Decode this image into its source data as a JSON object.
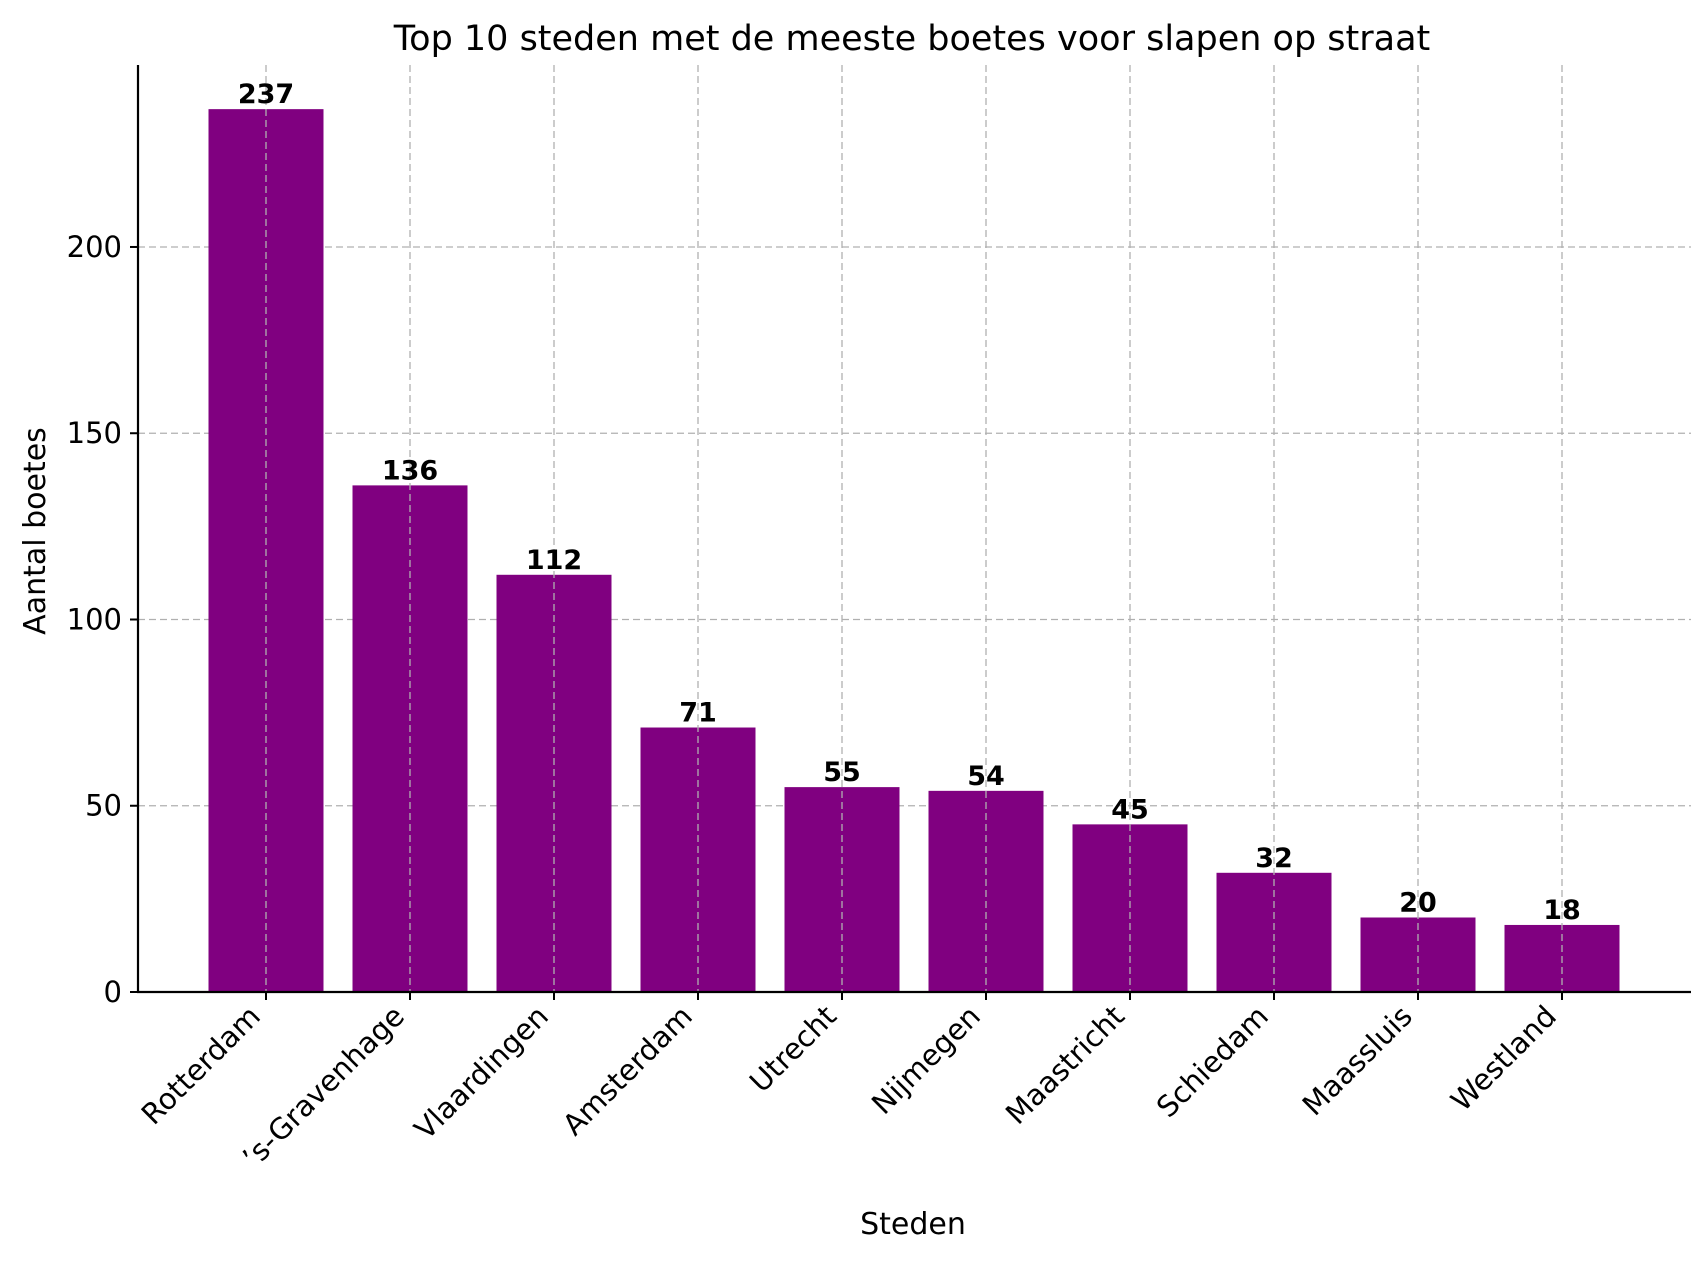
{
  "chart_data": {
    "type": "bar",
    "title": "Top 10 steden met de meeste boetes voor slapen op straat",
    "xlabel": "Steden",
    "ylabel": "Aantal boetes",
    "categories": [
      "Rotterdam",
      "’s-Gravenhage",
      "Vlaardingen",
      "Amsterdam",
      "Utrecht",
      "Nijmegen",
      "Maastricht",
      "Schiedam",
      "Maassluis",
      "Westland"
    ],
    "values": [
      237,
      136,
      112,
      71,
      55,
      54,
      45,
      32,
      20,
      18
    ],
    "data_labels": [
      "237",
      "136",
      "112",
      "71",
      "55",
      "54",
      "45",
      "32",
      "20",
      "18"
    ],
    "yticks": [
      0,
      50,
      100,
      150,
      200
    ],
    "ylim": [
      0,
      248.85
    ],
    "grid": true,
    "bar_color": "#800080"
  }
}
